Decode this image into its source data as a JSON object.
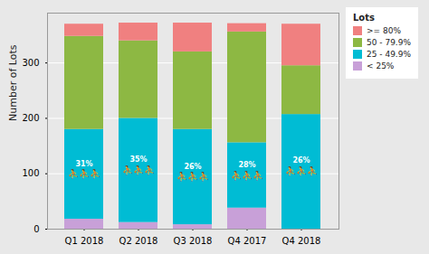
{
  "chart_data": {
    "type": "bar",
    "stacked": true,
    "categories": [
      "Q1 2018",
      "Q2 2018",
      "Q3 2018",
      "Q4 2017",
      "Q4 2018"
    ],
    "series": [
      {
        "name": "< 25%",
        "color": "#C8A0D8",
        "values": [
          18,
          12,
          8,
          38,
          0
        ]
      },
      {
        "name": "25 - 49.9%",
        "color": "#00BCD4",
        "values": [
          162,
          188,
          172,
          118,
          207
        ]
      },
      {
        "name": "50 - 79.9%",
        "color": "#8DB843",
        "values": [
          168,
          140,
          140,
          200,
          88
        ]
      },
      {
        "name": ">= 80%",
        "color": "#F08080",
        "values": [
          22,
          32,
          52,
          15,
          75
        ]
      }
    ],
    "ylabel": "Number of Lots",
    "ylim": [
      0,
      390
    ],
    "yticks": [
      0,
      100,
      200,
      300
    ],
    "grid": true,
    "legend": "right",
    "legend_title": "Lots",
    "annotations": [
      {
        "category": "Q1 2018",
        "text": "31%",
        "icon": "⛹⛹⛹"
      },
      {
        "category": "Q2 2018",
        "text": "35%",
        "icon": "⛹⛹⛹"
      },
      {
        "category": "Q3 2018",
        "text": "26%",
        "icon": "⛹⛹⛹"
      },
      {
        "category": "Q4 2017",
        "text": "28%",
        "icon": "⛹⛹⛹"
      },
      {
        "category": "Q4 2018",
        "text": "26%",
        "icon": "⛹⛹⛹"
      }
    ]
  }
}
